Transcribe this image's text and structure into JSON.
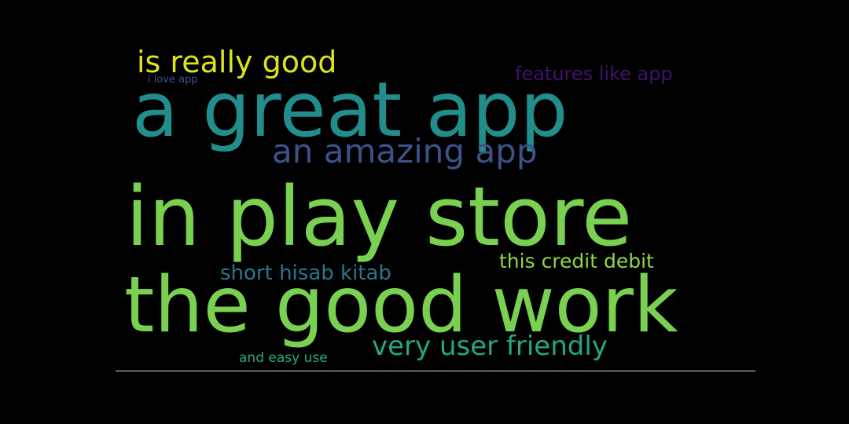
{
  "background_color": "#000000",
  "words": {
    "great_app": {
      "text": "a great app",
      "color": "#218e8c"
    },
    "play_store": {
      "text": "in play store",
      "color": "#7ad151"
    },
    "good_work": {
      "text": "the good work",
      "color": "#7ad151"
    },
    "really_good": {
      "text": "is really good",
      "color": "#dde318"
    },
    "love_app": {
      "text": "i love app",
      "color": "#3b528b"
    },
    "features": {
      "text": "features like app",
      "color": "#44106c"
    },
    "amazing_app": {
      "text": "an amazing app",
      "color": "#3b528b"
    },
    "credit_debit": {
      "text": "this credit debit",
      "color": "#8fd744"
    },
    "hisab_kitab": {
      "text": "short hisab kitab",
      "color": "#2a768e"
    },
    "user_friendly": {
      "text": "very user friendly",
      "color": "#22a884"
    },
    "easy_use": {
      "text": "and easy use",
      "color": "#27ad81"
    }
  }
}
